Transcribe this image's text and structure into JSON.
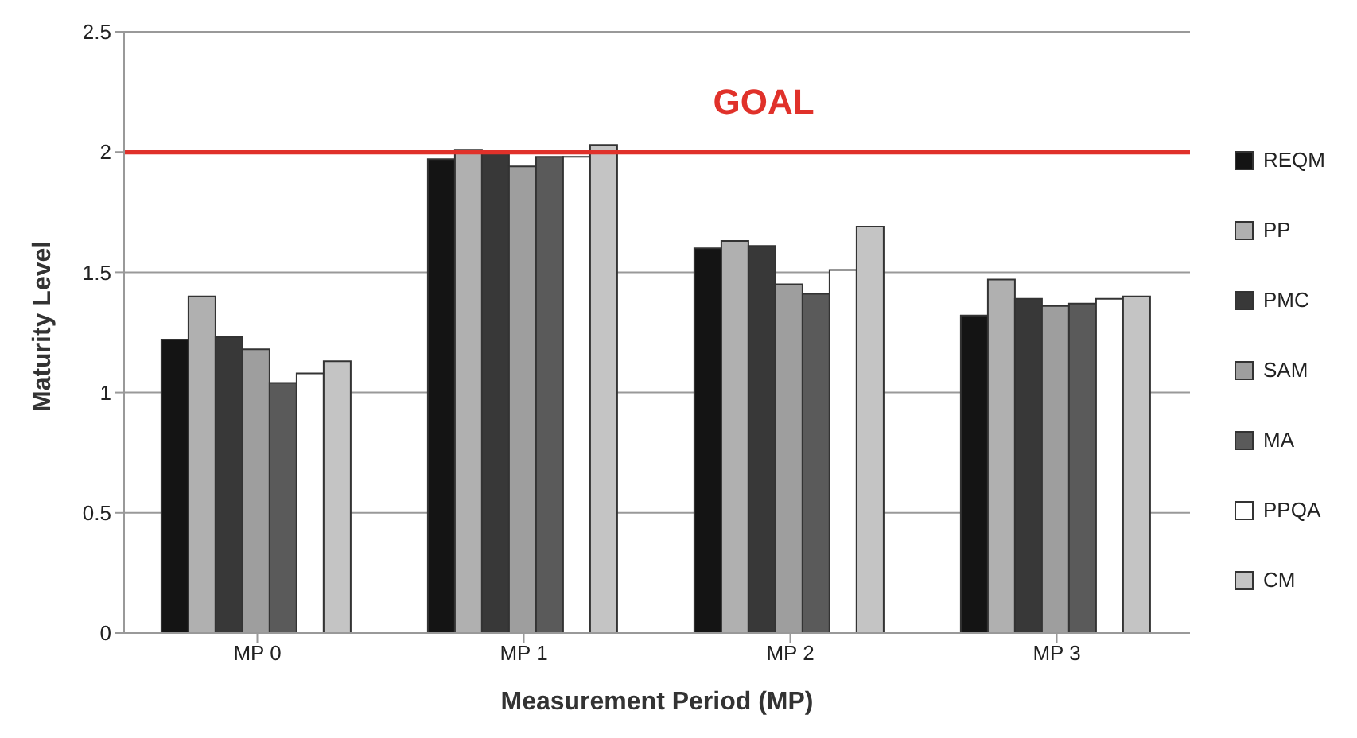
{
  "chart_data": {
    "type": "bar",
    "xlabel": "Measurement Period (MP)",
    "ylabel": "Maturity Level",
    "categories": [
      "MP 0",
      "MP 1",
      "MP 2",
      "MP 3"
    ],
    "series": [
      {
        "name": "REQM",
        "color": "#141414",
        "values": [
          1.22,
          1.97,
          1.6,
          1.32
        ]
      },
      {
        "name": "PP",
        "color": "#b0b0b0",
        "values": [
          1.4,
          2.01,
          1.63,
          1.47
        ]
      },
      {
        "name": "PMC",
        "color": "#383838",
        "values": [
          1.23,
          2.0,
          1.61,
          1.39
        ]
      },
      {
        "name": "SAM",
        "color": "#9e9e9e",
        "values": [
          1.18,
          1.94,
          1.45,
          1.36
        ]
      },
      {
        "name": "MA",
        "color": "#5a5a5a",
        "values": [
          1.04,
          1.98,
          1.41,
          1.37
        ]
      },
      {
        "name": "PPQA",
        "color": "#ffffff",
        "values": [
          1.08,
          1.98,
          1.51,
          1.39
        ]
      },
      {
        "name": "CM",
        "color": "#c4c4c4",
        "values": [
          1.13,
          2.03,
          1.69,
          1.4
        ]
      }
    ],
    "ylim": [
      0,
      2.5
    ],
    "yticks": [
      0,
      0.5,
      1,
      1.5,
      2,
      2.5
    ],
    "grid": "y",
    "legend": "right",
    "ref_lines": [
      {
        "axis": "y",
        "value": 2,
        "label": "GOAL",
        "color": "#e0312a"
      }
    ]
  }
}
